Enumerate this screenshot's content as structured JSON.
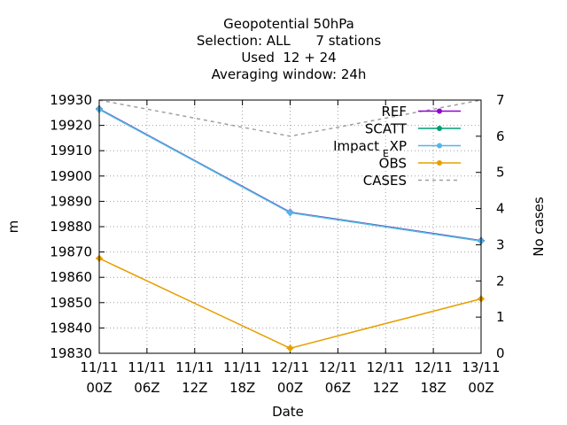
{
  "chart_data": {
    "type": "line",
    "title_lines": [
      "Geopotential 50hPa",
      "Selection: ALL      7 stations",
      "Used  12 + 24",
      "Averaging window: 24h"
    ],
    "xlabel": "Date",
    "ylabel": "m",
    "y2label": "No cases",
    "x_ticks": [
      [
        "11/11",
        "00Z"
      ],
      [
        "11/11",
        "06Z"
      ],
      [
        "11/11",
        "12Z"
      ],
      [
        "11/11",
        "18Z"
      ],
      [
        "12/11",
        "00Z"
      ],
      [
        "12/11",
        "06Z"
      ],
      [
        "12/11",
        "12Z"
      ],
      [
        "12/11",
        "18Z"
      ],
      [
        "13/11",
        "00Z"
      ]
    ],
    "x_hours": [
      0,
      24,
      48
    ],
    "xlim_hours": [
      0,
      48
    ],
    "ylim": [
      19830,
      19930
    ],
    "y_ticks": [
      19830,
      19840,
      19850,
      19860,
      19870,
      19880,
      19890,
      19900,
      19910,
      19920,
      19930
    ],
    "y2lim": [
      0,
      7
    ],
    "y2_ticks": [
      0,
      1,
      2,
      3,
      4,
      5,
      6,
      7
    ],
    "grid": true,
    "legend_position": "top-right",
    "series": [
      {
        "name": "REF",
        "color": "#9400d3",
        "axis": "y",
        "style": "linespoints",
        "values": [
          19926.5,
          19885.7,
          19874.5
        ]
      },
      {
        "name": "SCATT",
        "color": "#009e73",
        "axis": "y",
        "style": "linespoints",
        "values": [
          19926.4,
          19885.6,
          19874.4
        ]
      },
      {
        "name": "Impact_EXP",
        "label_main": "Impact",
        "label_sub": "E",
        "label_tail": "XP",
        "color": "#56b4e9",
        "axis": "y",
        "style": "linespoints",
        "values": [
          19926.3,
          19885.5,
          19874.3
        ]
      },
      {
        "name": "OBS",
        "color": "#e69f00",
        "axis": "y",
        "style": "linespoints",
        "values": [
          19867.5,
          19832.0,
          19851.5
        ]
      },
      {
        "name": "CASES",
        "color": "#a0a0a0",
        "axis": "y2",
        "style": "dashed",
        "values": [
          7,
          6,
          7
        ]
      }
    ]
  }
}
